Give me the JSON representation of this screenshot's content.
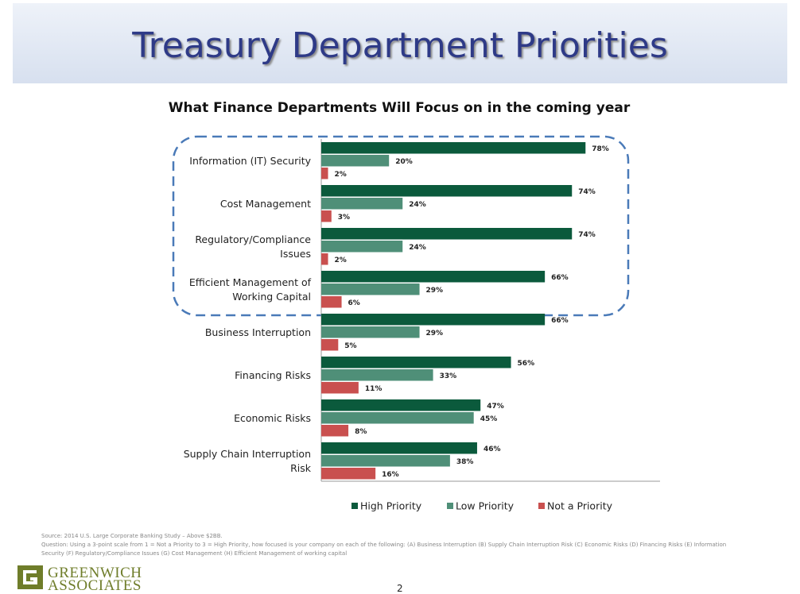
{
  "header": {
    "title": "Treasury Department Priorities"
  },
  "chart_data": {
    "type": "hbar",
    "title": "What Finance Departments Will Focus on in the coming year",
    "categories": [
      "Information (IT) Security",
      "Cost Management",
      "Regulatory/Compliance Issues",
      "Efficient Management of Working Capital",
      "Business Interruption",
      "Financing Risks",
      "Economic Risks",
      "Supply Chain Interruption Risk"
    ],
    "xlim": [
      0,
      100
    ],
    "series": [
      {
        "name": "High Priority",
        "color": "#0b5a3c",
        "values": [
          78,
          74,
          74,
          66,
          66,
          56,
          47,
          46
        ],
        "value_labels": [
          "78%",
          "74%",
          "74%",
          "66%",
          "66%",
          "56%",
          "47%",
          "46%"
        ]
      },
      {
        "name": "Low Priority",
        "color": "#4f8f78",
        "values": [
          20,
          24,
          24,
          29,
          29,
          33,
          45,
          38
        ],
        "value_labels": [
          "20%",
          "24%",
          "24%",
          "29%",
          "29%",
          "33%",
          "45%",
          "38%"
        ]
      },
      {
        "name": "Not a Priority",
        "color": "#c9504f",
        "values": [
          2,
          3,
          2,
          6,
          5,
          11,
          8,
          16
        ],
        "value_labels": [
          "2%",
          "3%",
          "2%",
          "6%",
          "5%",
          "11%",
          "8%",
          "16%"
        ]
      }
    ],
    "legend": "bottom"
  },
  "footer": {
    "source": "Source: 2014 U.S. Large Corporate Banking Study – Above $2BB.",
    "question": "Question: Using a 3-point scale from 1 = Not a Priority to 3 = High Priority, how focused is your company on each of the following: (A) Business Interruption (B) Supply Chain Interruption Risk (C) Economic Risks (D) Financing Risks (E) Information Security (F) Regulatory/Compliance Issues (G) Cost Management (H) Efficient Management of working capital",
    "logo_line1": "GREENWICH",
    "logo_line2": "ASSOCIATES",
    "page": "2"
  }
}
